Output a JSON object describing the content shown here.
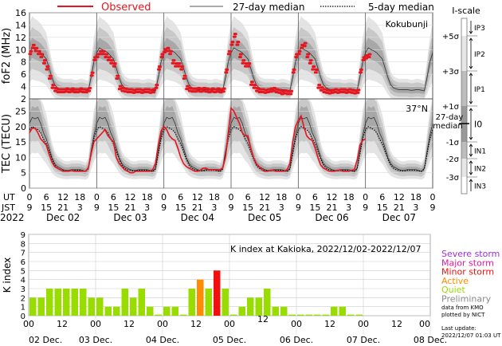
{
  "legend": {
    "observed": "Observed",
    "median27": "27-day median",
    "median5": "5-day median",
    "colors": {
      "observed": "#e8141e",
      "median27": "#333333",
      "median5": "#000000"
    }
  },
  "chart_data": [
    {
      "type": "line",
      "panel": "foF2",
      "ylabel": "foF2 (MHz)",
      "station": "Kokubunji",
      "ylim": [
        2,
        16
      ],
      "yticks": [
        "2",
        "4",
        "6",
        "8",
        "10",
        "12",
        "14",
        "16"
      ],
      "x_axis": {
        "ut_label": "UT",
        "jst_label": "JST",
        "year": "2022",
        "ut_ticks": [
          "0",
          "6",
          "12",
          "18"
        ],
        "jst_ticks": [
          "9",
          "15",
          "21",
          "3"
        ],
        "days": [
          "Dec 02",
          "Dec 03",
          "Dec 04",
          "Dec 05",
          "Dec 06",
          "Dec 07"
        ]
      },
      "median27_profile_hourly_UT": [
        9.5,
        10.3,
        10.0,
        9.8,
        9.5,
        9.0,
        8.5,
        7.0,
        5.5,
        4.3,
        3.8,
        3.6,
        3.5,
        3.5,
        3.5,
        3.5,
        3.4,
        3.4,
        3.5,
        3.5,
        3.4,
        3.3,
        5.5,
        8.0
      ],
      "observed_hourly_UT": [
        [
          9.5,
          10.5,
          10.0,
          9.5,
          9.0,
          8.0,
          7.0,
          5.5,
          4.0,
          3.5,
          3.3,
          3.3,
          3.3,
          3.4,
          3.3,
          3.4,
          3.3,
          3.3,
          3.4,
          3.3,
          3.3,
          3.5,
          6.0,
          8.5
        ],
        [
          9.0,
          9.5,
          9.5,
          9.0,
          8.5,
          8.0,
          7.5,
          5.5,
          3.8,
          3.5,
          3.4,
          3.3,
          3.3,
          3.2,
          3.3,
          3.3,
          3.2,
          3.3,
          3.3,
          3.2,
          3.3,
          4.0,
          7.0,
          9.0
        ],
        [
          9.8,
          10.0,
          9.5,
          8.0,
          7.5,
          7.5,
          7.0,
          5.5,
          3.8,
          3.5,
          3.4,
          3.4,
          3.5,
          3.4,
          3.5,
          3.4,
          3.3,
          3.4,
          3.3,
          3.4,
          3.3,
          3.4,
          6.5,
          9.5
        ],
        [
          11.0,
          12.3,
          11.0,
          9.0,
          8.0,
          7.5,
          7.5,
          4.5,
          4.0,
          3.5,
          3.3,
          3.3,
          3.2,
          3.3,
          3.4,
          3.5,
          3.3,
          3.2,
          3.0,
          3.1,
          3.0,
          3.0,
          6.5,
          9.0
        ],
        [
          9.5,
          10.5,
          10.8,
          9.0,
          8.0,
          7.0,
          6.5,
          4.0,
          3.6,
          3.3,
          3.2,
          3.1,
          3.2,
          3.3,
          3.2,
          3.3,
          3.3,
          3.2,
          3.3,
          3.2,
          3.1,
          3.2,
          6.5,
          8.5
        ],
        [
          8.8,
          9.0
        ]
      ]
    },
    {
      "type": "line",
      "panel": "TEC",
      "ylabel": "TEC (TECU)",
      "station": "37°N",
      "ylim": [
        0,
        29
      ],
      "yticks": [
        "0",
        "5",
        "10",
        "15",
        "20",
        "25"
      ],
      "median27_profile_hourly_UT": [
        21,
        23,
        22.5,
        23,
        21,
        18,
        16,
        13,
        10,
        8,
        7,
        6.5,
        6,
        5.8,
        5.8,
        6,
        6,
        6,
        6,
        5.8,
        5.5,
        6.5,
        12,
        17
      ],
      "median5_profile_hourly_UT": [
        19,
        20,
        19.5,
        19,
        18,
        16,
        14.5,
        12,
        9.5,
        7.5,
        6.5,
        6,
        5.8,
        5.6,
        5.6,
        5.8,
        5.8,
        5.8,
        5.8,
        5.6,
        5.4,
        6.2,
        11,
        16
      ],
      "observed_hourly_UT": [
        [
          18,
          19.5,
          19.5,
          18,
          16,
          15,
          14,
          11,
          8.5,
          7,
          6.5,
          6,
          5.5,
          5.5,
          5.5,
          5.8,
          5.5,
          5.5,
          5.5,
          5.5,
          5.5,
          6.5,
          11,
          15
        ],
        [
          16,
          17,
          18,
          19,
          17,
          16,
          15,
          10,
          8,
          7,
          6,
          5.5,
          5,
          5,
          5.5,
          5.5,
          5.5,
          5.5,
          5.5,
          5.5,
          6,
          8,
          14,
          18.5
        ],
        [
          20,
          19,
          17,
          16,
          15.5,
          13,
          10,
          8,
          7,
          6.5,
          6,
          5.5,
          5.5,
          5.8,
          6.5,
          6.5,
          6,
          6,
          6,
          6,
          6,
          6.5,
          10,
          18
        ],
        [
          26,
          25,
          23,
          21,
          18,
          17,
          17,
          13,
          10,
          8,
          7,
          6,
          5.5,
          5.5,
          5.8,
          5.8,
          5.5,
          5.5,
          5.5,
          5.5,
          6,
          8,
          15,
          20
        ],
        [
          22,
          23.5,
          20,
          17,
          16,
          15.5,
          13,
          10,
          7.5,
          6.5,
          6,
          5.5,
          5.5,
          5.5,
          5.8,
          5.8,
          5.5,
          5.5,
          5.5,
          5.8,
          6,
          9,
          14,
          15.5
        ],
        [
          16
        ]
      ]
    },
    {
      "type": "bar",
      "panel": "K index",
      "title": "K index at Kakioka, 2022/12/02-2022/12/07",
      "ylabel": "K index",
      "ylim": [
        0,
        9
      ],
      "yticks": [
        "0",
        "1",
        "2",
        "3",
        "4",
        "5",
        "6",
        "7",
        "8",
        "9"
      ],
      "hour_ticks": [
        "00",
        "12",
        "00",
        "12",
        "00",
        "12",
        "00",
        "12",
        "00",
        "12",
        "00",
        "12",
        "00"
      ],
      "date_ticks": [
        "02 Dec.",
        "03 Dec.",
        "04 Dec.",
        "05 Dec.",
        "06 Dec.",
        "07 Dec.",
        "08 Dec."
      ],
      "interval_hours": 3,
      "values": [
        2,
        2,
        3,
        3,
        3,
        3,
        3,
        2,
        2,
        1,
        1,
        3,
        2,
        3,
        1,
        0,
        1,
        1,
        0,
        3,
        4,
        3,
        5,
        3,
        0,
        1,
        2,
        2,
        3,
        1,
        1,
        0,
        0,
        0,
        0,
        0,
        1,
        1,
        0,
        0
      ],
      "legend": [
        {
          "label": "Severe storm",
          "color": "#9b30d9"
        },
        {
          "label": "Major storm",
          "color": "#e0199e"
        },
        {
          "label": "Minor storm",
          "color": "#f01010"
        },
        {
          "label": "Active",
          "color": "#ff8c00"
        },
        {
          "label": "Quiet",
          "color": "#99dd00"
        },
        {
          "label": "Preliminary",
          "color": "#888888"
        }
      ],
      "credit1": "data from KMO",
      "credit2": "plotted by NICT",
      "update_label": "Last update:",
      "update_time": "2022/12/07 01:03 UT"
    }
  ],
  "iscale": {
    "title": "I-scale",
    "levels": [
      "+5σ",
      "+3σ",
      "+1σ",
      "-1σ",
      "-2σ",
      "-3σ"
    ],
    "median_label_1": "27-day",
    "median_label_2": "median",
    "classes": [
      "IP3",
      "IP2",
      "IP1",
      "I0",
      "IN1",
      "IN2",
      "IN3"
    ]
  }
}
